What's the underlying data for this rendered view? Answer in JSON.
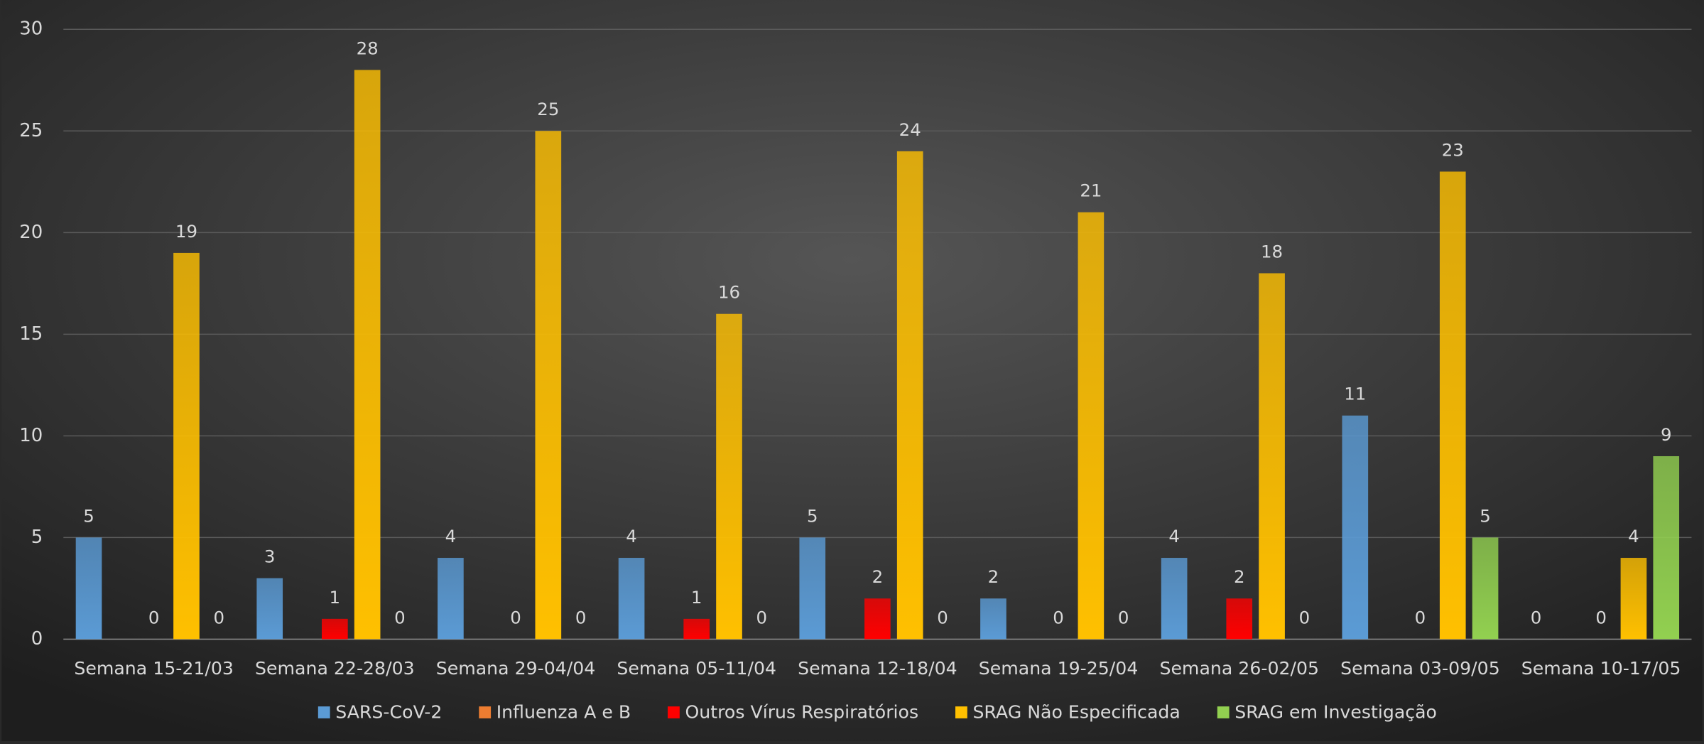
{
  "chart_data": {
    "type": "bar",
    "categories": [
      "Semana 15-21/03",
      "Semana 22-28/03",
      "Semana 29-04/04",
      "Semana 05-11/04",
      "Semana 12-18/04",
      "Semana 19-25/04",
      "Semana 26-02/05",
      "Semana 03-09/05",
      "Semana 10-17/05"
    ],
    "series": [
      {
        "name": "SARS-CoV-2",
        "color": "#5b9bd5",
        "values": [
          5,
          3,
          4,
          4,
          5,
          2,
          4,
          11,
          0
        ]
      },
      {
        "name": "Influenza A e B",
        "color": "#ed7d31",
        "values": [
          0,
          0,
          0,
          0,
          0,
          0,
          0,
          0,
          0
        ],
        "labels": false
      },
      {
        "name": "Outros Vírus Respiratórios",
        "color": "#ff0000",
        "values": [
          0,
          1,
          0,
          1,
          2,
          0,
          2,
          0,
          0
        ]
      },
      {
        "name": "SRAG Não Especificada",
        "color": "#ffc000",
        "values": [
          19,
          28,
          25,
          16,
          24,
          21,
          18,
          23,
          4
        ]
      },
      {
        "name": "SRAG em Investigação",
        "color": "#92d050",
        "values": [
          0,
          0,
          0,
          0,
          0,
          0,
          0,
          5,
          9
        ]
      }
    ],
    "ylim": [
      0,
      30
    ],
    "yticks": [
      0,
      5,
      10,
      15,
      20,
      25,
      30
    ],
    "grid": true,
    "legend": "bottom"
  }
}
